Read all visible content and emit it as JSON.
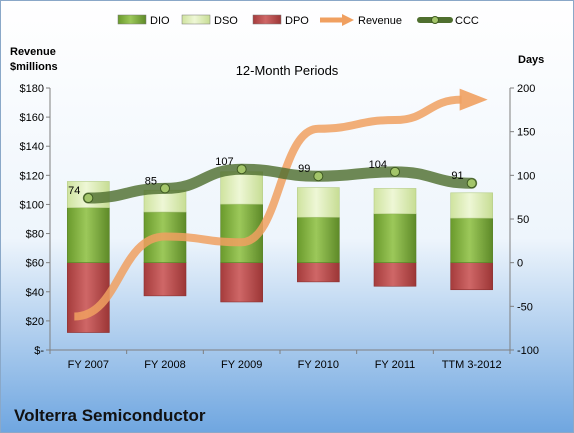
{
  "chart_data": {
    "type": "bar",
    "title": "12-Month Periods",
    "company": "Volterra Semiconductor",
    "left_axis": {
      "label_line1": "Revenue",
      "label_line2": "$millions",
      "range": [
        0,
        180
      ],
      "ticks": [
        "$-",
        "$20",
        "$40",
        "$60",
        "$80",
        "$100",
        "$120",
        "$140",
        "$160",
        "$180"
      ]
    },
    "right_axis": {
      "label": "Days",
      "range": [
        -100,
        200
      ],
      "ticks": [
        "-100",
        "-50",
        "0",
        "50",
        "100",
        "150",
        "200"
      ]
    },
    "categories": [
      "FY 2007",
      "FY 2008",
      "FY 2009",
      "FY 2010",
      "FY 2011",
      "TTM 3-2012"
    ],
    "legend": [
      {
        "key": "dio",
        "label": "DIO"
      },
      {
        "key": "dso",
        "label": "DSO"
      },
      {
        "key": "dpo",
        "label": "DPO"
      },
      {
        "key": "revenue",
        "label": "Revenue"
      },
      {
        "key": "ccc",
        "label": "CCC"
      }
    ],
    "series": [
      {
        "key": "dio",
        "name": "DIO",
        "values": [
          63,
          58,
          67,
          52,
          56,
          51
        ]
      },
      {
        "key": "dso",
        "name": "DSO",
        "values": [
          30,
          25,
          37,
          34,
          29,
          29
        ]
      },
      {
        "key": "dpo",
        "name": "DPO",
        "values": [
          -80,
          -38,
          -45,
          -22,
          -27,
          -31
        ]
      },
      {
        "key": "revenue",
        "name": "Revenue",
        "values": [
          23,
          78,
          74,
          152,
          158,
          172
        ]
      },
      {
        "key": "ccc",
        "name": "CCC",
        "values": [
          74,
          85,
          107,
          99,
          104,
          91
        ]
      }
    ],
    "ccc_labels": [
      "74",
      "85",
      "107",
      "99",
      "104",
      "91"
    ],
    "colors": {
      "background_top": "#ffffff",
      "background_bottom": "#6fa6e0",
      "dio": "#7aa83a",
      "dso": "#dcecb6",
      "dpo": "#b84a4a",
      "revenue": "#f0a060",
      "ccc": "#4f6f2f"
    }
  }
}
